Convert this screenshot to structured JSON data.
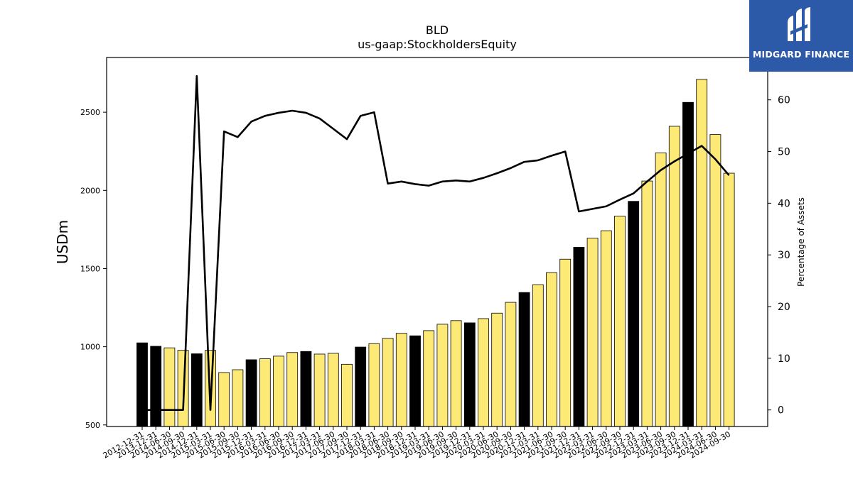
{
  "chart_data": {
    "type": "bar",
    "title": "BLD",
    "subtitle": "us-gaap:StockholdersEquity",
    "ylabel": "USDm",
    "y2label": "Percentage of Assets",
    "ylim": [
      490,
      2850
    ],
    "y2lim": [
      -3.2,
      68.2
    ],
    "yticks": [
      500,
      1000,
      1500,
      2000,
      2500
    ],
    "y2ticks": [
      0,
      10,
      20,
      30,
      40,
      50,
      60
    ],
    "categories": [
      "2012-12-31",
      "2013-12-31",
      "2014-06-30",
      "2014-09-30",
      "2014-12-31",
      "2015-03-31",
      "2015-06-30",
      "2015-09-30",
      "2015-12-31",
      "2016-03-31",
      "2016-06-30",
      "2016-09-30",
      "2016-12-31",
      "2017-03-31",
      "2017-06-30",
      "2017-09-30",
      "2017-12-31",
      "2018-03-31",
      "2018-06-30",
      "2018-09-30",
      "2018-12-31",
      "2019-03-31",
      "2019-06-30",
      "2019-09-30",
      "2019-12-31",
      "2020-03-31",
      "2020-06-30",
      "2020-09-30",
      "2020-12-31",
      "2021-03-31",
      "2021-06-30",
      "2021-09-30",
      "2021-12-31",
      "2022-03-31",
      "2022-06-30",
      "2022-09-30",
      "2022-12-31",
      "2023-03-31",
      "2023-06-30",
      "2023-09-30",
      "2023-12-31",
      "2024-03-31",
      "2024-06-30",
      "2024-09-30"
    ],
    "series": [
      {
        "type": "bar",
        "values": [
          1025,
          1003,
          993,
          977,
          955,
          977,
          835,
          853,
          917,
          923,
          940,
          963,
          970,
          953,
          958,
          888,
          998,
          1020,
          1054,
          1086,
          1070,
          1103,
          1144,
          1167,
          1153,
          1180,
          1215,
          1284,
          1347,
          1397,
          1474,
          1560,
          1636,
          1695,
          1742,
          1836,
          1930,
          2060,
          2240,
          2410,
          2563,
          2710,
          2357,
          2110
        ],
        "colors": [
          "#000000",
          "#000000",
          "#fde975",
          "#fde975",
          "#000000",
          "#fde975",
          "#fde975",
          "#fde975",
          "#000000",
          "#fde975",
          "#fde975",
          "#fde975",
          "#000000",
          "#fde975",
          "#fde975",
          "#fde975",
          "#000000",
          "#fde975",
          "#fde975",
          "#fde975",
          "#000000",
          "#fde975",
          "#fde975",
          "#fde975",
          "#000000",
          "#fde975",
          "#fde975",
          "#fde975",
          "#000000",
          "#fde975",
          "#fde975",
          "#fde975",
          "#000000",
          "#fde975",
          "#fde975",
          "#fde975",
          "#000000",
          "#fde975",
          "#fde975",
          "#fde975",
          "#000000",
          "#fde975",
          "#fde975",
          "#fde975"
        ]
      },
      {
        "type": "line",
        "axis": "y2",
        "values": [
          0,
          0,
          0,
          0,
          64.6,
          0,
          53.9,
          52.8,
          55.8,
          56.9,
          57.5,
          57.9,
          57.5,
          56.4,
          54.4,
          52.4,
          56.9,
          57.6,
          43.8,
          44.2,
          43.7,
          43.4,
          44.2,
          44.4,
          44.2,
          44.9,
          45.8,
          46.8,
          48.0,
          48.3,
          49.2,
          50.0,
          38.4,
          38.9,
          39.4,
          40.7,
          41.9,
          44.2,
          46.4,
          48.1,
          49.6,
          51.1,
          48.5,
          45.4
        ],
        "color": "#000000"
      }
    ]
  },
  "logo": {
    "text": "MIDGARD FINANCE"
  }
}
